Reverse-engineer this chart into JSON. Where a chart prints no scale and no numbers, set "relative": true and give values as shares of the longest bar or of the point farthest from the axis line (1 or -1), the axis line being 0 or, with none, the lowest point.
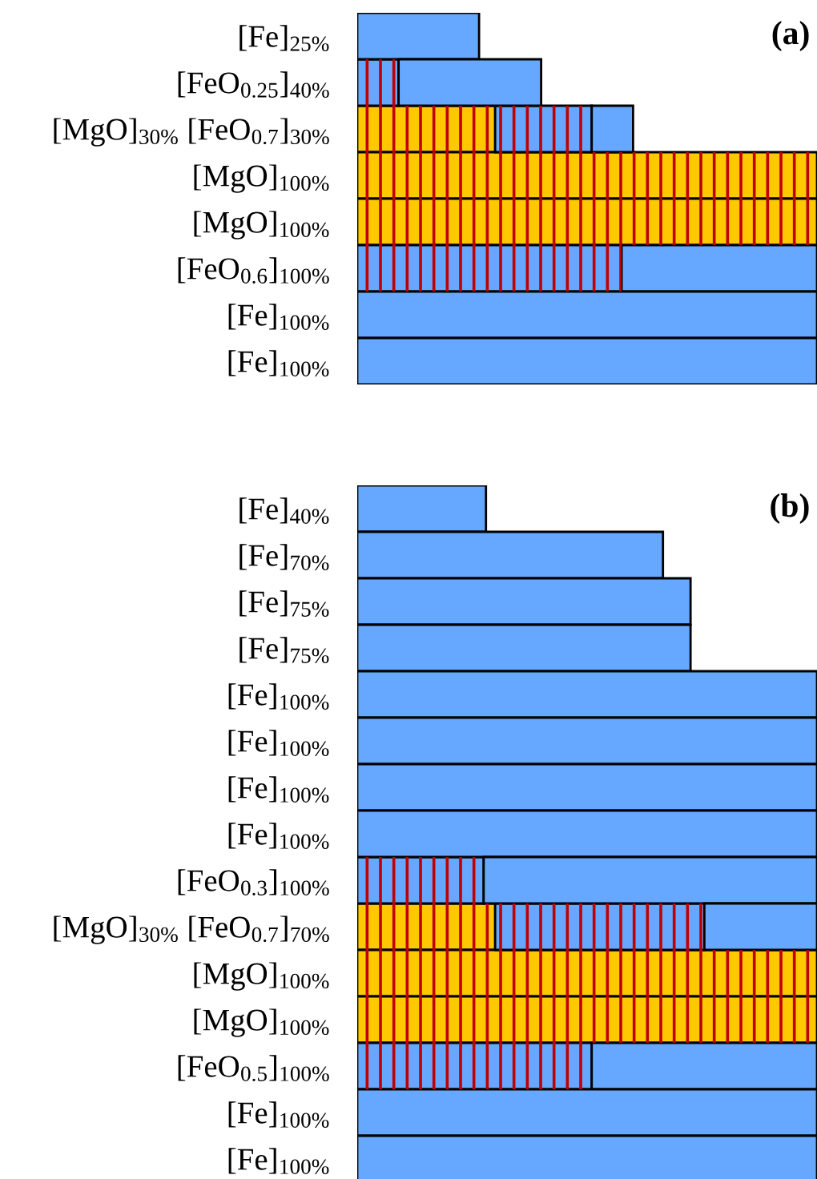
{
  "chart_data": [
    {
      "type": "bar",
      "orientation": "horizontal",
      "stacked": true,
      "relative": true,
      "annotations": [
        "(a)"
      ],
      "categories": [
        "[Fe]$_{25%}$",
        "[FeO$_{0.25}$]$_{40%}$",
        "[MgO]$_{30%}$ [FeO$_{0.7}$]$_{30%}$",
        "[MgO]$_{100%}$",
        "[MgO]$_{100%}$",
        "[FeO$_{0.6}$]$_{100%}$",
        "[Fe]$_{100%}$",
        "[Fe]$_{100%}$"
      ],
      "series": [
        {
          "color": "#ffc800",
          "values": [
            null,
            null,
            0.3,
            1,
            1,
            null,
            null,
            null
          ]
        },
        {
          "color": "#66a8ff",
          "values": [
            null,
            0.09,
            0.21,
            null,
            null,
            0.575,
            null,
            null
          ]
        },
        {
          "color": "#66a8ff",
          "values": [
            0.265,
            0.31,
            0.09,
            null,
            null,
            0.425,
            1,
            1
          ]
        }
      ]
    },
    {
      "type": "bar",
      "orientation": "horizontal",
      "stacked": true,
      "relative": true,
      "annotations": [
        "(b)"
      ],
      "categories": [
        "[Fe]$_{40%}$",
        "[Fe]$_{70%}$",
        "[Fe]$_{75%}$",
        "[Fe]$_{75%}$",
        "[Fe]$_{100%}$",
        "[Fe]$_{100%}$",
        "[Fe]$_{100%}$",
        "[Fe]$_{100%}$",
        "[FeO$_{0.3}$]$_{100%}$",
        "[MgO]$_{30%}$ [FeO$_{0.7}$]$_{70%}$",
        "[MgO]$_{100%}$",
        "[MgO]$_{100%}$",
        "[FeO$_{0.5}$]$_{100%}$",
        "[Fe]$_{100%}$",
        "[Fe]$_{100%}$"
      ],
      "series": [
        {
          "color": "#ffc800",
          "values": [
            null,
            null,
            null,
            null,
            null,
            null,
            null,
            null,
            null,
            0.3,
            1,
            1,
            null,
            null,
            null
          ]
        },
        {
          "color": "#66a8ff",
          "values": [
            null,
            null,
            null,
            null,
            null,
            null,
            null,
            null,
            0.275,
            0.455,
            null,
            null,
            0.51,
            null,
            null
          ]
        },
        {
          "color": "#66a8ff",
          "values": [
            0.28,
            0.665,
            0.725,
            0.725,
            1,
            1,
            1,
            1,
            0.725,
            0.245,
            null,
            null,
            0.49,
            1,
            1
          ]
        }
      ]
    }
  ]
}
